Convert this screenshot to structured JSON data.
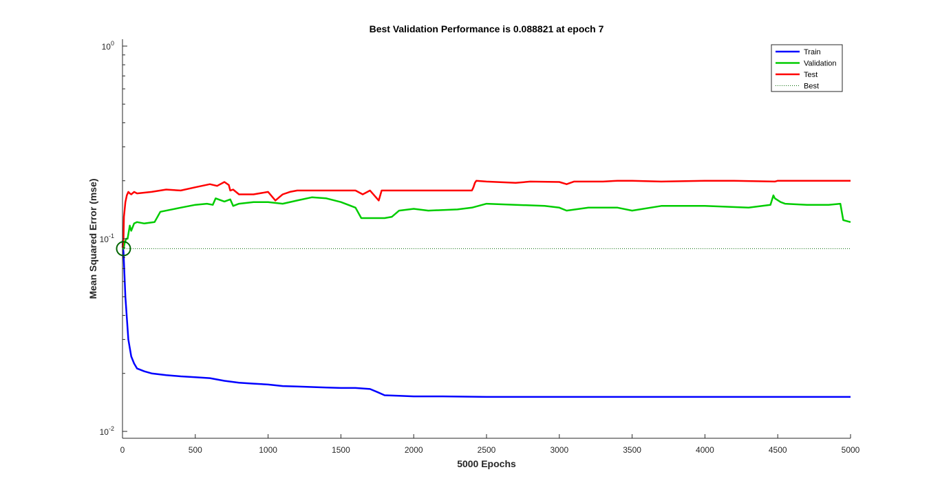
{
  "chart_data": {
    "type": "line",
    "title": "Best Validation Performance is 0.088821 at epoch 7",
    "xlabel": "5000 Epochs",
    "ylabel": "Mean Squared Error  (mse)",
    "xlim": [
      0,
      5000
    ],
    "ylim": [
      0.01,
      1
    ],
    "yscale": "log",
    "grid": false,
    "legend_position": "top-right",
    "x_ticks": [
      0,
      500,
      1000,
      1500,
      2000,
      2500,
      3000,
      3500,
      4000,
      4500,
      5000
    ],
    "x_tick_labels": [
      "0",
      "500",
      "1000",
      "1500",
      "2000",
      "2500",
      "3000",
      "3500",
      "4000",
      "4500",
      "5000"
    ],
    "y_ticks": [
      0.01,
      0.1,
      1
    ],
    "y_tick_labels": [
      {
        "base": "10",
        "exp": "-2"
      },
      {
        "base": "10",
        "exp": "-1"
      },
      {
        "base": "10",
        "exp": "0"
      }
    ],
    "series": [
      {
        "name": "Train",
        "color": "#0000ff",
        "style": "solid",
        "x": [
          0,
          7,
          20,
          40,
          60,
          80,
          100,
          150,
          200,
          300,
          400,
          500,
          600,
          700,
          800,
          900,
          1000,
          1100,
          1200,
          1300,
          1400,
          1500,
          1600,
          1700,
          1750,
          1800,
          1900,
          2000,
          2200,
          2500,
          3000,
          3500,
          4000,
          4500,
          5000
        ],
        "y": [
          0.095,
          0.085,
          0.05,
          0.03,
          0.0245,
          0.0225,
          0.0212,
          0.0205,
          0.02,
          0.0196,
          0.0193,
          0.0191,
          0.0189,
          0.0183,
          0.0179,
          0.0177,
          0.0175,
          0.0172,
          0.0171,
          0.017,
          0.0169,
          0.0168,
          0.0168,
          0.0166,
          0.016,
          0.0154,
          0.0153,
          0.0152,
          0.0152,
          0.0151,
          0.0151,
          0.0151,
          0.0151,
          0.0151,
          0.0151
        ]
      },
      {
        "name": "Validation",
        "color": "#00cc00",
        "style": "solid",
        "x": [
          0,
          7,
          15,
          25,
          35,
          50,
          60,
          80,
          100,
          150,
          220,
          260,
          400,
          500,
          580,
          620,
          640,
          700,
          740,
          760,
          800,
          900,
          1000,
          1100,
          1200,
          1300,
          1400,
          1500,
          1600,
          1640,
          1650,
          1700,
          1800,
          1850,
          1900,
          2000,
          2100,
          2300,
          2400,
          2500,
          2700,
          2900,
          3000,
          3050,
          3200,
          3400,
          3500,
          3700,
          4000,
          4300,
          4450,
          4470,
          4480,
          4520,
          4550,
          4700,
          4850,
          4930,
          4950,
          5000
        ],
        "y": [
          0.098,
          0.0888,
          0.095,
          0.1,
          0.1,
          0.117,
          0.11,
          0.12,
          0.122,
          0.12,
          0.122,
          0.138,
          0.145,
          0.15,
          0.152,
          0.15,
          0.162,
          0.156,
          0.16,
          0.148,
          0.152,
          0.155,
          0.155,
          0.152,
          0.158,
          0.164,
          0.162,
          0.155,
          0.145,
          0.128,
          0.128,
          0.128,
          0.128,
          0.13,
          0.14,
          0.143,
          0.14,
          0.142,
          0.145,
          0.152,
          0.15,
          0.148,
          0.145,
          0.14,
          0.145,
          0.145,
          0.14,
          0.148,
          0.148,
          0.145,
          0.15,
          0.168,
          0.162,
          0.155,
          0.152,
          0.15,
          0.15,
          0.152,
          0.125,
          0.122
        ]
      },
      {
        "name": "Test",
        "color": "#ff0000",
        "style": "solid",
        "x": [
          0,
          7,
          10,
          20,
          30,
          40,
          50,
          60,
          80,
          100,
          200,
          300,
          400,
          500,
          600,
          650,
          700,
          730,
          740,
          760,
          800,
          900,
          1000,
          1050,
          1080,
          1100,
          1150,
          1200,
          1300,
          1400,
          1500,
          1600,
          1650,
          1700,
          1760,
          1780,
          1800,
          2000,
          2200,
          2400,
          2410,
          2420,
          2430,
          2500,
          2700,
          2800,
          3000,
          3050,
          3100,
          3300,
          3400,
          3500,
          3700,
          4000,
          4200,
          4480,
          4500,
          4700,
          5000
        ],
        "y": [
          0.09,
          0.1,
          0.13,
          0.155,
          0.168,
          0.175,
          0.172,
          0.17,
          0.175,
          0.172,
          0.175,
          0.18,
          0.178,
          0.185,
          0.192,
          0.188,
          0.197,
          0.19,
          0.178,
          0.18,
          0.17,
          0.17,
          0.175,
          0.158,
          0.165,
          0.17,
          0.175,
          0.178,
          0.178,
          0.178,
          0.178,
          0.178,
          0.17,
          0.178,
          0.158,
          0.178,
          0.178,
          0.178,
          0.178,
          0.178,
          0.185,
          0.195,
          0.2,
          0.198,
          0.195,
          0.198,
          0.197,
          0.192,
          0.198,
          0.198,
          0.2,
          0.2,
          0.198,
          0.2,
          0.2,
          0.198,
          0.2,
          0.2,
          0.2
        ]
      },
      {
        "name": "Best",
        "color": "#006600",
        "style": "dotted",
        "x": [
          0,
          5000
        ],
        "y": [
          0.088821,
          0.088821
        ]
      }
    ],
    "best_marker": {
      "x": 7,
      "y": 0.088821,
      "color": "#006600"
    }
  }
}
